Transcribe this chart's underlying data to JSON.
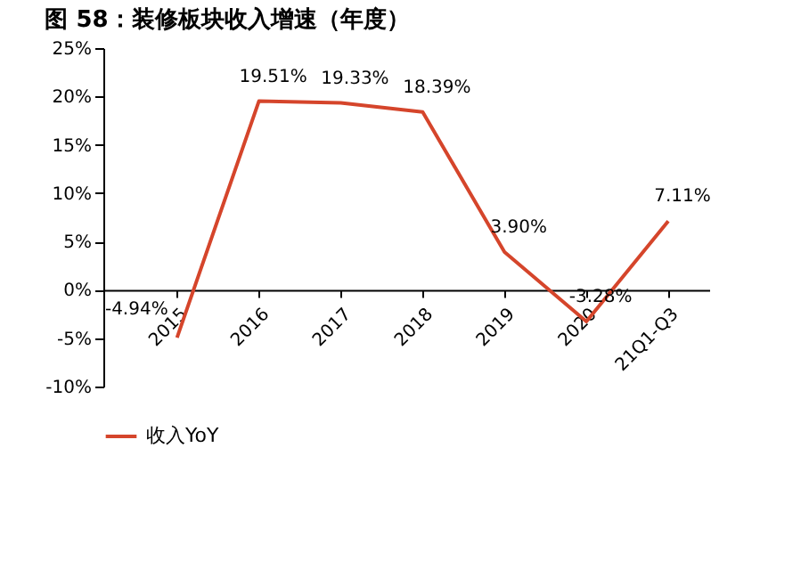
{
  "chart_data": {
    "type": "line",
    "title": "图 58：装修板块收入增速（年度）",
    "categories": [
      "2015",
      "2016",
      "2017",
      "2018",
      "2019",
      "2020",
      "21Q1-Q3"
    ],
    "series": [
      {
        "name": "收入YoY",
        "color": "#d5452b",
        "values": [
          -4.94,
          19.51,
          19.33,
          18.39,
          3.9,
          -3.28,
          7.11
        ],
        "value_labels": [
          "-4.94%",
          "19.51%",
          "19.33%",
          "18.39%",
          "3.90%",
          "-3.28%",
          "7.11%"
        ]
      }
    ],
    "ylim": [
      -10,
      25
    ],
    "yticks": [
      {
        "value": -10,
        "label": "-10%"
      },
      {
        "value": -5,
        "label": "-5%"
      },
      {
        "value": 0,
        "label": "0%"
      },
      {
        "value": 5,
        "label": "5%"
      },
      {
        "value": 10,
        "label": "10%"
      },
      {
        "value": 15,
        "label": "15%"
      },
      {
        "value": 20,
        "label": "20%"
      },
      {
        "value": 25,
        "label": "25%"
      }
    ],
    "grid": false,
    "legend": "bottom",
    "marker": "none",
    "line_style": "solid"
  }
}
